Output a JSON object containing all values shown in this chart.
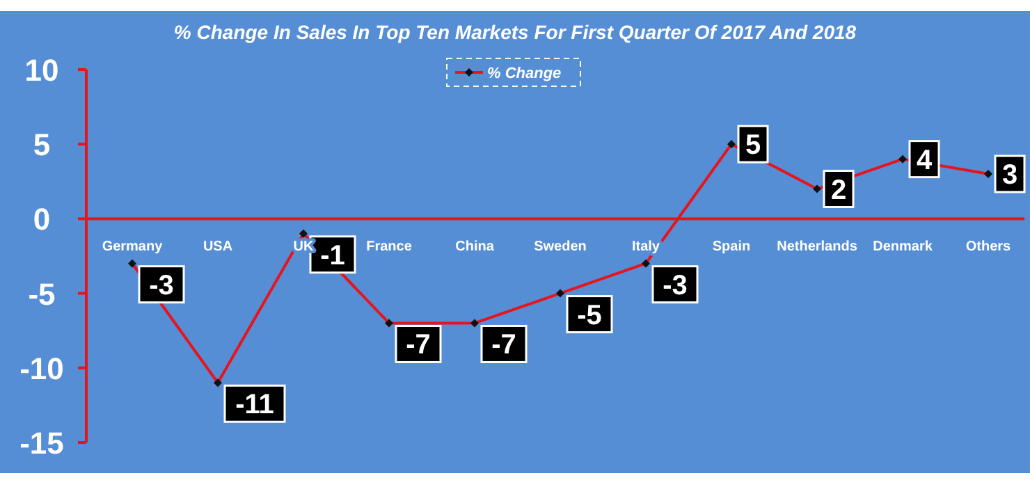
{
  "chart_data": {
    "type": "line",
    "title": "% Change In Sales In Top Ten Markets For First Quarter Of 2017 And 2018",
    "categories": [
      "Germany",
      "USA",
      "UK",
      "France",
      "China",
      "Sweden",
      "Italy",
      "Spain",
      "Netherlands",
      "Denmark",
      "Others"
    ],
    "series": [
      {
        "name": "% Change",
        "color": "#e8141c",
        "values": [
          -3,
          -11,
          -1,
          -7,
          -7,
          -5,
          -3,
          5,
          2,
          4,
          3
        ]
      }
    ],
    "ylim": [
      -15,
      10
    ],
    "yticks": [
      -15,
      -10,
      -5,
      0,
      5,
      10
    ],
    "grid": false,
    "legend": "top",
    "marker": "diamond",
    "line_style": "solid",
    "data_labels": true
  }
}
